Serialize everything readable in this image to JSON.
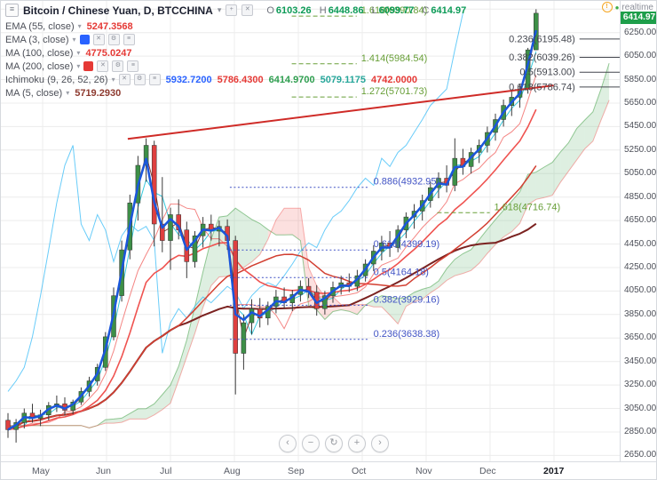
{
  "icons": {
    "burger": "≡",
    "caret": "▾",
    "plus": "+",
    "close": "✕",
    "gear": "⚙",
    "info": "!",
    "dot": "●"
  },
  "header": {
    "symbol_title": "Bitcoin / Chinese Yuan, D, BTCCHINA",
    "ohlc_labels": [
      "O",
      "H",
      "L",
      "C"
    ],
    "ohlc_values": [
      "6103.26",
      "6448.86",
      "6099.77",
      "6414.97"
    ],
    "realtime_label": "realtime"
  },
  "legend": [
    {
      "label": "EMA (55, close)",
      "swatch": null,
      "boxes": [],
      "values": [
        {
          "text": "5247.3568",
          "color": "#e53935"
        }
      ]
    },
    {
      "label": "EMA (3, close)",
      "swatch": "#2962ff",
      "boxes": [
        "✕",
        "⚙",
        "≡"
      ],
      "values": []
    },
    {
      "label": "MA (100, close)",
      "swatch": null,
      "boxes": [],
      "values": [
        {
          "text": "4775.0247",
          "color": "#e53935"
        }
      ]
    },
    {
      "label": "MA (200, close)",
      "swatch": "#e53935",
      "boxes": [
        "✕",
        "⚙",
        "≡"
      ],
      "values": []
    },
    {
      "label": "Ichimoku (9, 26, 52, 26)",
      "swatch": null,
      "boxes": [
        "✕",
        "⚙",
        "≡"
      ],
      "values": [
        {
          "text": "5932.7200",
          "color": "#2962ff"
        },
        {
          "text": "5786.4300",
          "color": "#e53935"
        },
        {
          "text": "6414.9700",
          "color": "#2e9e4f"
        },
        {
          "text": "5079.1175",
          "color": "#26a69a"
        },
        {
          "text": "4742.0000",
          "color": "#e53935"
        }
      ]
    },
    {
      "label": "MA (5, close)",
      "swatch": null,
      "boxes": [],
      "values": [
        {
          "text": "5719.2930",
          "color": "#8d3a2f"
        }
      ]
    }
  ],
  "price_axis": {
    "ticks": [
      "6250.00",
      "6050.00",
      "5850.00",
      "5650.00",
      "5450.00",
      "5250.00",
      "5050.00",
      "4850.00",
      "4650.00",
      "4450.00",
      "4250.00",
      "4050.00",
      "3850.00",
      "3650.00",
      "3450.00",
      "3250.00",
      "3050.00",
      "2850.00",
      "2650.00"
    ],
    "last_price": "6414.97",
    "last_price_value": 6414.97,
    "tag_color": "#1e9e4a"
  },
  "nav": {
    "buttons": [
      {
        "name": "scroll-left",
        "glyph": "‹"
      },
      {
        "name": "zoom-out",
        "glyph": "−"
      },
      {
        "name": "reset-view",
        "glyph": "↻"
      },
      {
        "name": "zoom-in",
        "glyph": "+"
      },
      {
        "name": "scroll-right",
        "glyph": "›"
      }
    ]
  },
  "chart_data": {
    "type": "candlestick",
    "title": "Bitcoin / Chinese Yuan, D, BTCCHINA",
    "interval": "D",
    "exchange": "BTCCHINA",
    "current_ohlc": {
      "open": 6103.26,
      "high": 6448.86,
      "low": 6099.77,
      "close": 6414.97
    },
    "y_axis": {
      "min": 2600,
      "max": 6520,
      "tick_step": 200
    },
    "x_axis": {
      "labels": [
        "May",
        "Jun",
        "Jul",
        "Aug",
        "Sep",
        "Oct",
        "Nov",
        "Dec",
        "2017"
      ]
    },
    "up_color": "#3d8f47",
    "down_color": "#de4040",
    "candles": [
      [
        2950,
        3010,
        2800,
        2870
      ],
      [
        2870,
        2960,
        2760,
        2930
      ],
      [
        2930,
        3050,
        2880,
        3010
      ],
      [
        3010,
        3090,
        2930,
        2965
      ],
      [
        2965,
        3040,
        2900,
        2995
      ],
      [
        2995,
        3105,
        2950,
        3075
      ],
      [
        3075,
        3160,
        3020,
        3090
      ],
      [
        3090,
        3145,
        2990,
        3035
      ],
      [
        3035,
        3125,
        3000,
        3105
      ],
      [
        3105,
        3230,
        3080,
        3195
      ],
      [
        3195,
        3320,
        3150,
        3285
      ],
      [
        3285,
        3430,
        3245,
        3400
      ],
      [
        3400,
        3700,
        3370,
        3660
      ],
      [
        3660,
        4080,
        3630,
        4010
      ],
      [
        4010,
        4480,
        3960,
        4400
      ],
      [
        4400,
        4870,
        4320,
        4800
      ],
      [
        4800,
        5200,
        4650,
        5120
      ],
      [
        5120,
        5350,
        4980,
        5290
      ],
      [
        5290,
        5330,
        4430,
        4620
      ],
      [
        4620,
        5020,
        4380,
        4480
      ],
      [
        4480,
        4760,
        4230,
        4700
      ],
      [
        4700,
        4830,
        4490,
        4570
      ],
      [
        4570,
        4640,
        4160,
        4300
      ],
      [
        4300,
        4560,
        4250,
        4520
      ],
      [
        4520,
        4680,
        4420,
        4620
      ],
      [
        4620,
        4700,
        4480,
        4560
      ],
      [
        4560,
        4650,
        4430,
        4600
      ],
      [
        4600,
        4660,
        4400,
        4480
      ],
      [
        4480,
        4520,
        3170,
        3520
      ],
      [
        3520,
        3850,
        3380,
        3780
      ],
      [
        3780,
        3980,
        3680,
        3900
      ],
      [
        3900,
        3990,
        3740,
        3820
      ],
      [
        3820,
        3960,
        3760,
        3920
      ],
      [
        3920,
        4060,
        3860,
        4000
      ],
      [
        4000,
        4080,
        3900,
        3950
      ],
      [
        3950,
        4060,
        3880,
        4020
      ],
      [
        4020,
        4140,
        3960,
        4090
      ],
      [
        4090,
        4160,
        3990,
        4040
      ],
      [
        4040,
        4100,
        3840,
        3900
      ],
      [
        3900,
        4050,
        3850,
        4010
      ],
      [
        4010,
        4130,
        3950,
        4080
      ],
      [
        4080,
        4180,
        4020,
        4120
      ],
      [
        4120,
        4200,
        4040,
        4090
      ],
      [
        4090,
        4230,
        4050,
        4180
      ],
      [
        4180,
        4320,
        4130,
        4280
      ],
      [
        4280,
        4440,
        4220,
        4390
      ],
      [
        4390,
        4520,
        4310,
        4460
      ],
      [
        4460,
        4560,
        4340,
        4420
      ],
      [
        4420,
        4610,
        4380,
        4570
      ],
      [
        4570,
        4720,
        4500,
        4680
      ],
      [
        4680,
        4790,
        4580,
        4730
      ],
      [
        4730,
        4870,
        4650,
        4820
      ],
      [
        4820,
        4980,
        4760,
        4930
      ],
      [
        4930,
        5060,
        4840,
        5010
      ],
      [
        5010,
        5120,
        4890,
        4950
      ],
      [
        4950,
        5350,
        4900,
        5180
      ],
      [
        5180,
        5260,
        5040,
        5110
      ],
      [
        5110,
        5270,
        5050,
        5230
      ],
      [
        5230,
        5340,
        5140,
        5290
      ],
      [
        5290,
        5450,
        5230,
        5400
      ],
      [
        5400,
        5560,
        5330,
        5510
      ],
      [
        5510,
        5680,
        5450,
        5630
      ],
      [
        5630,
        5760,
        5540,
        5700
      ],
      [
        5700,
        5810,
        5610,
        5770
      ],
      [
        5770,
        6120,
        5730,
        6103
      ],
      [
        6103.26,
        6448.86,
        6099.77,
        6414.97
      ]
    ],
    "overlays": [
      {
        "name": "MA 200",
        "type": "sma",
        "render_period": 43,
        "color": "#7b2220",
        "width": 2,
        "front": false
      },
      {
        "name": "MA 100",
        "type": "sma",
        "render_period": 22,
        "color": "#d23f31",
        "width": 1.5,
        "front": false
      },
      {
        "name": "EMA 55",
        "type": "ema",
        "render_period": 12,
        "color": "#ef5350",
        "width": 1.6,
        "front": false
      },
      {
        "name": "MA 5",
        "type": "sma",
        "render_period": 2,
        "color": "#8d3a2f",
        "width": 1,
        "front": false
      },
      {
        "name": "EMA 3",
        "type": "ema",
        "render_period": 2,
        "color": "#1a56db",
        "width": 2.5,
        "front": true
      }
    ],
    "ichimoku": {
      "params": [
        9,
        26,
        52,
        26
      ],
      "cloud_up_color": "rgba(103,183,119,0.22)",
      "cloud_down_color": "rgba(239,83,80,0.18)",
      "span_a_color": "#43a047",
      "span_b_color": "#ef5350",
      "tenkan_color": "#00bcd4",
      "kijun_color": "#ef5350",
      "chikou_color": "#29b6f6",
      "render": {
        "tenkan": 2,
        "kijun": 6,
        "senkou": 11,
        "displacement": 9
      }
    },
    "trendline": {
      "x1_frac": 0.205,
      "price1": 5345,
      "x2_frac": 0.893,
      "price2": 5800,
      "color": "#cf2b27",
      "width": 2
    },
    "fib_annotations": [
      {
        "text": "1.618(6390.84)",
        "price": 6390.84,
        "color": "#689f38",
        "x1": 0.47,
        "x2": 0.575,
        "lx": 0.582,
        "dash": "5,3",
        "anchor": "start"
      },
      {
        "text": "1.414(5984.54)",
        "price": 5984.54,
        "color": "#689f38",
        "x1": 0.47,
        "x2": 0.575,
        "lx": 0.582,
        "dash": "5,3",
        "anchor": "start"
      },
      {
        "text": "1.272(5701.73)",
        "price": 5701.73,
        "color": "#689f38",
        "x1": 0.47,
        "x2": 0.575,
        "lx": 0.582,
        "dash": "5,3",
        "anchor": "start"
      },
      {
        "text": "0.236(6195.48)",
        "price": 6195.48,
        "color": "#44474f",
        "x1": 0.935,
        "x2": 1.0,
        "lx": 0.928,
        "dash": "",
        "anchor": "end"
      },
      {
        "text": "0.382(6039.26)",
        "price": 6039.26,
        "color": "#44474f",
        "x1": 0.935,
        "x2": 1.0,
        "lx": 0.928,
        "dash": "",
        "anchor": "end"
      },
      {
        "text": "0.5(5913.00)",
        "price": 5913.0,
        "color": "#44474f",
        "x1": 0.935,
        "x2": 1.0,
        "lx": 0.928,
        "dash": "",
        "anchor": "end"
      },
      {
        "text": "0.618(5786.74)",
        "price": 5786.74,
        "color": "#44474f",
        "x1": 0.935,
        "x2": 1.0,
        "lx": 0.928,
        "dash": "",
        "anchor": "end"
      },
      {
        "text": "0.886(4932.95)",
        "price": 4932.95,
        "color": "#4254c5",
        "x1": 0.37,
        "x2": 0.595,
        "lx": 0.602,
        "dash": "2,2.5",
        "anchor": "start"
      },
      {
        "text": "1.618(4716.74)",
        "price": 4716.74,
        "color": "#689f38",
        "x1": 0.705,
        "x2": 0.79,
        "lx": 0.797,
        "dash": "5,3",
        "anchor": "start"
      },
      {
        "text": "0.618(4399.19)",
        "price": 4399.19,
        "color": "#4254c5",
        "x1": 0.37,
        "x2": 0.595,
        "lx": 0.602,
        "dash": "2,2.5",
        "anchor": "start"
      },
      {
        "text": "0.5(4164.18)",
        "price": 4164.18,
        "color": "#4254c5",
        "x1": 0.37,
        "x2": 0.595,
        "lx": 0.602,
        "dash": "2,2.5",
        "anchor": "start"
      },
      {
        "text": "0.382(3929.16)",
        "price": 3929.16,
        "color": "#4254c5",
        "x1": 0.37,
        "x2": 0.595,
        "lx": 0.602,
        "dash": "2,2.5",
        "anchor": "start"
      },
      {
        "text": "0.236(3638.38)",
        "price": 3638.38,
        "color": "#4254c5",
        "x1": 0.37,
        "x2": 0.595,
        "lx": 0.602,
        "dash": "2,2.5",
        "anchor": "start"
      }
    ]
  }
}
